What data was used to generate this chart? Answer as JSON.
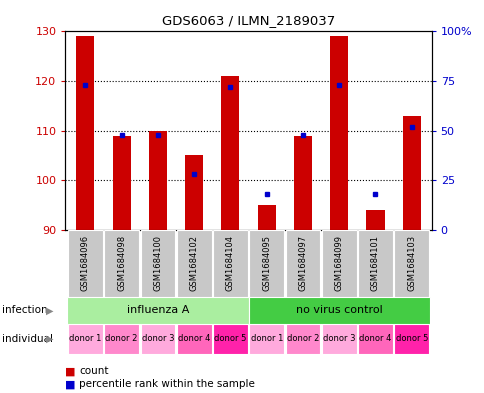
{
  "title": "GDS6063 / ILMN_2189037",
  "samples": [
    "GSM1684096",
    "GSM1684098",
    "GSM1684100",
    "GSM1684102",
    "GSM1684104",
    "GSM1684095",
    "GSM1684097",
    "GSM1684099",
    "GSM1684101",
    "GSM1684103"
  ],
  "counts": [
    129,
    109,
    110,
    105,
    121,
    95,
    109,
    129,
    94,
    113
  ],
  "percentiles": [
    73,
    48,
    48,
    28,
    72,
    18,
    48,
    73,
    18,
    52
  ],
  "ymin": 90,
  "ymax": 130,
  "yticks": [
    90,
    100,
    110,
    120,
    130
  ],
  "right_yticks": [
    0,
    25,
    50,
    75,
    100
  ],
  "right_yticklabels": [
    "0",
    "25",
    "50",
    "75",
    "100%"
  ],
  "infection_groups": [
    {
      "label": "influenza A",
      "start": 0,
      "end": 5,
      "color": "#AAEEA0"
    },
    {
      "label": "no virus control",
      "start": 5,
      "end": 10,
      "color": "#44CC44"
    }
  ],
  "individual_labels": [
    "donor 1",
    "donor 2",
    "donor 3",
    "donor 4",
    "donor 5",
    "donor 1",
    "donor 2",
    "donor 3",
    "donor 4",
    "donor 5"
  ],
  "individual_box_colors": [
    "#FFAAEE",
    "#FF77DD",
    "#FFAAEE",
    "#FF55CC",
    "#FF33BB",
    "#FFAAEE",
    "#FF77DD",
    "#FFAAEE",
    "#FF55CC",
    "#FF33BB"
  ],
  "bar_color": "#CC0000",
  "dot_color": "#0000CC",
  "bar_width": 0.5,
  "background_color": "#ffffff",
  "plot_bg_color": "#ffffff",
  "tick_color_left": "#CC0000",
  "tick_color_right": "#0000CC",
  "sample_box_color": "#C8C8C8",
  "legend_count_label": "count",
  "legend_pct_label": "percentile rank within the sample",
  "infection_label": "infection",
  "individual_label": "individual"
}
